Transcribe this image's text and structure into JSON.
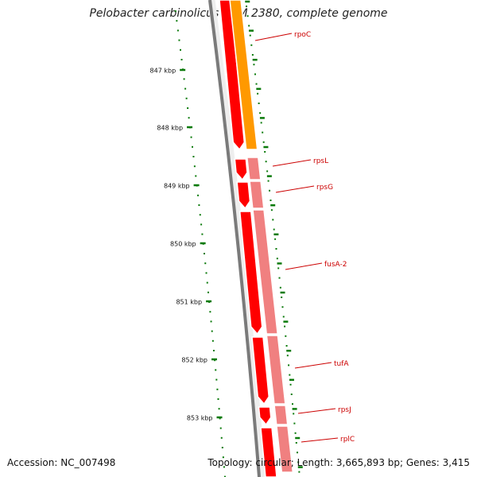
{
  "title": "Pelobacter carbinolicus DSM 2380, complete genome",
  "footer": {
    "accession": "Accession: NC_007498",
    "summary": "Topology: circular; Length: 3,665,893 bp; Genes: 3,415"
  },
  "colors": {
    "backbone": "#7a7a7a",
    "forward_cds": "#ff0000",
    "reverse_cds": "#f08080",
    "rna_gene": "#ff9900",
    "ticks": "#0a7a0a",
    "label": "#cc0000"
  },
  "ruler": {
    "unit": "kbp",
    "labels": [
      "847 kbp",
      "848 kbp",
      "849 kbp",
      "850 kbp",
      "851 kbp",
      "852 kbp",
      "853 kbp"
    ]
  },
  "genes": [
    {
      "name": "rpoC",
      "strand": "reverse"
    },
    {
      "name": "rpsL",
      "strand": "reverse"
    },
    {
      "name": "rpsG",
      "strand": "reverse"
    },
    {
      "name": "fusA-2",
      "strand": "reverse"
    },
    {
      "name": "tufA",
      "strand": "reverse"
    },
    {
      "name": "rpsJ",
      "strand": "reverse"
    },
    {
      "name": "rplC",
      "strand": "reverse"
    }
  ]
}
